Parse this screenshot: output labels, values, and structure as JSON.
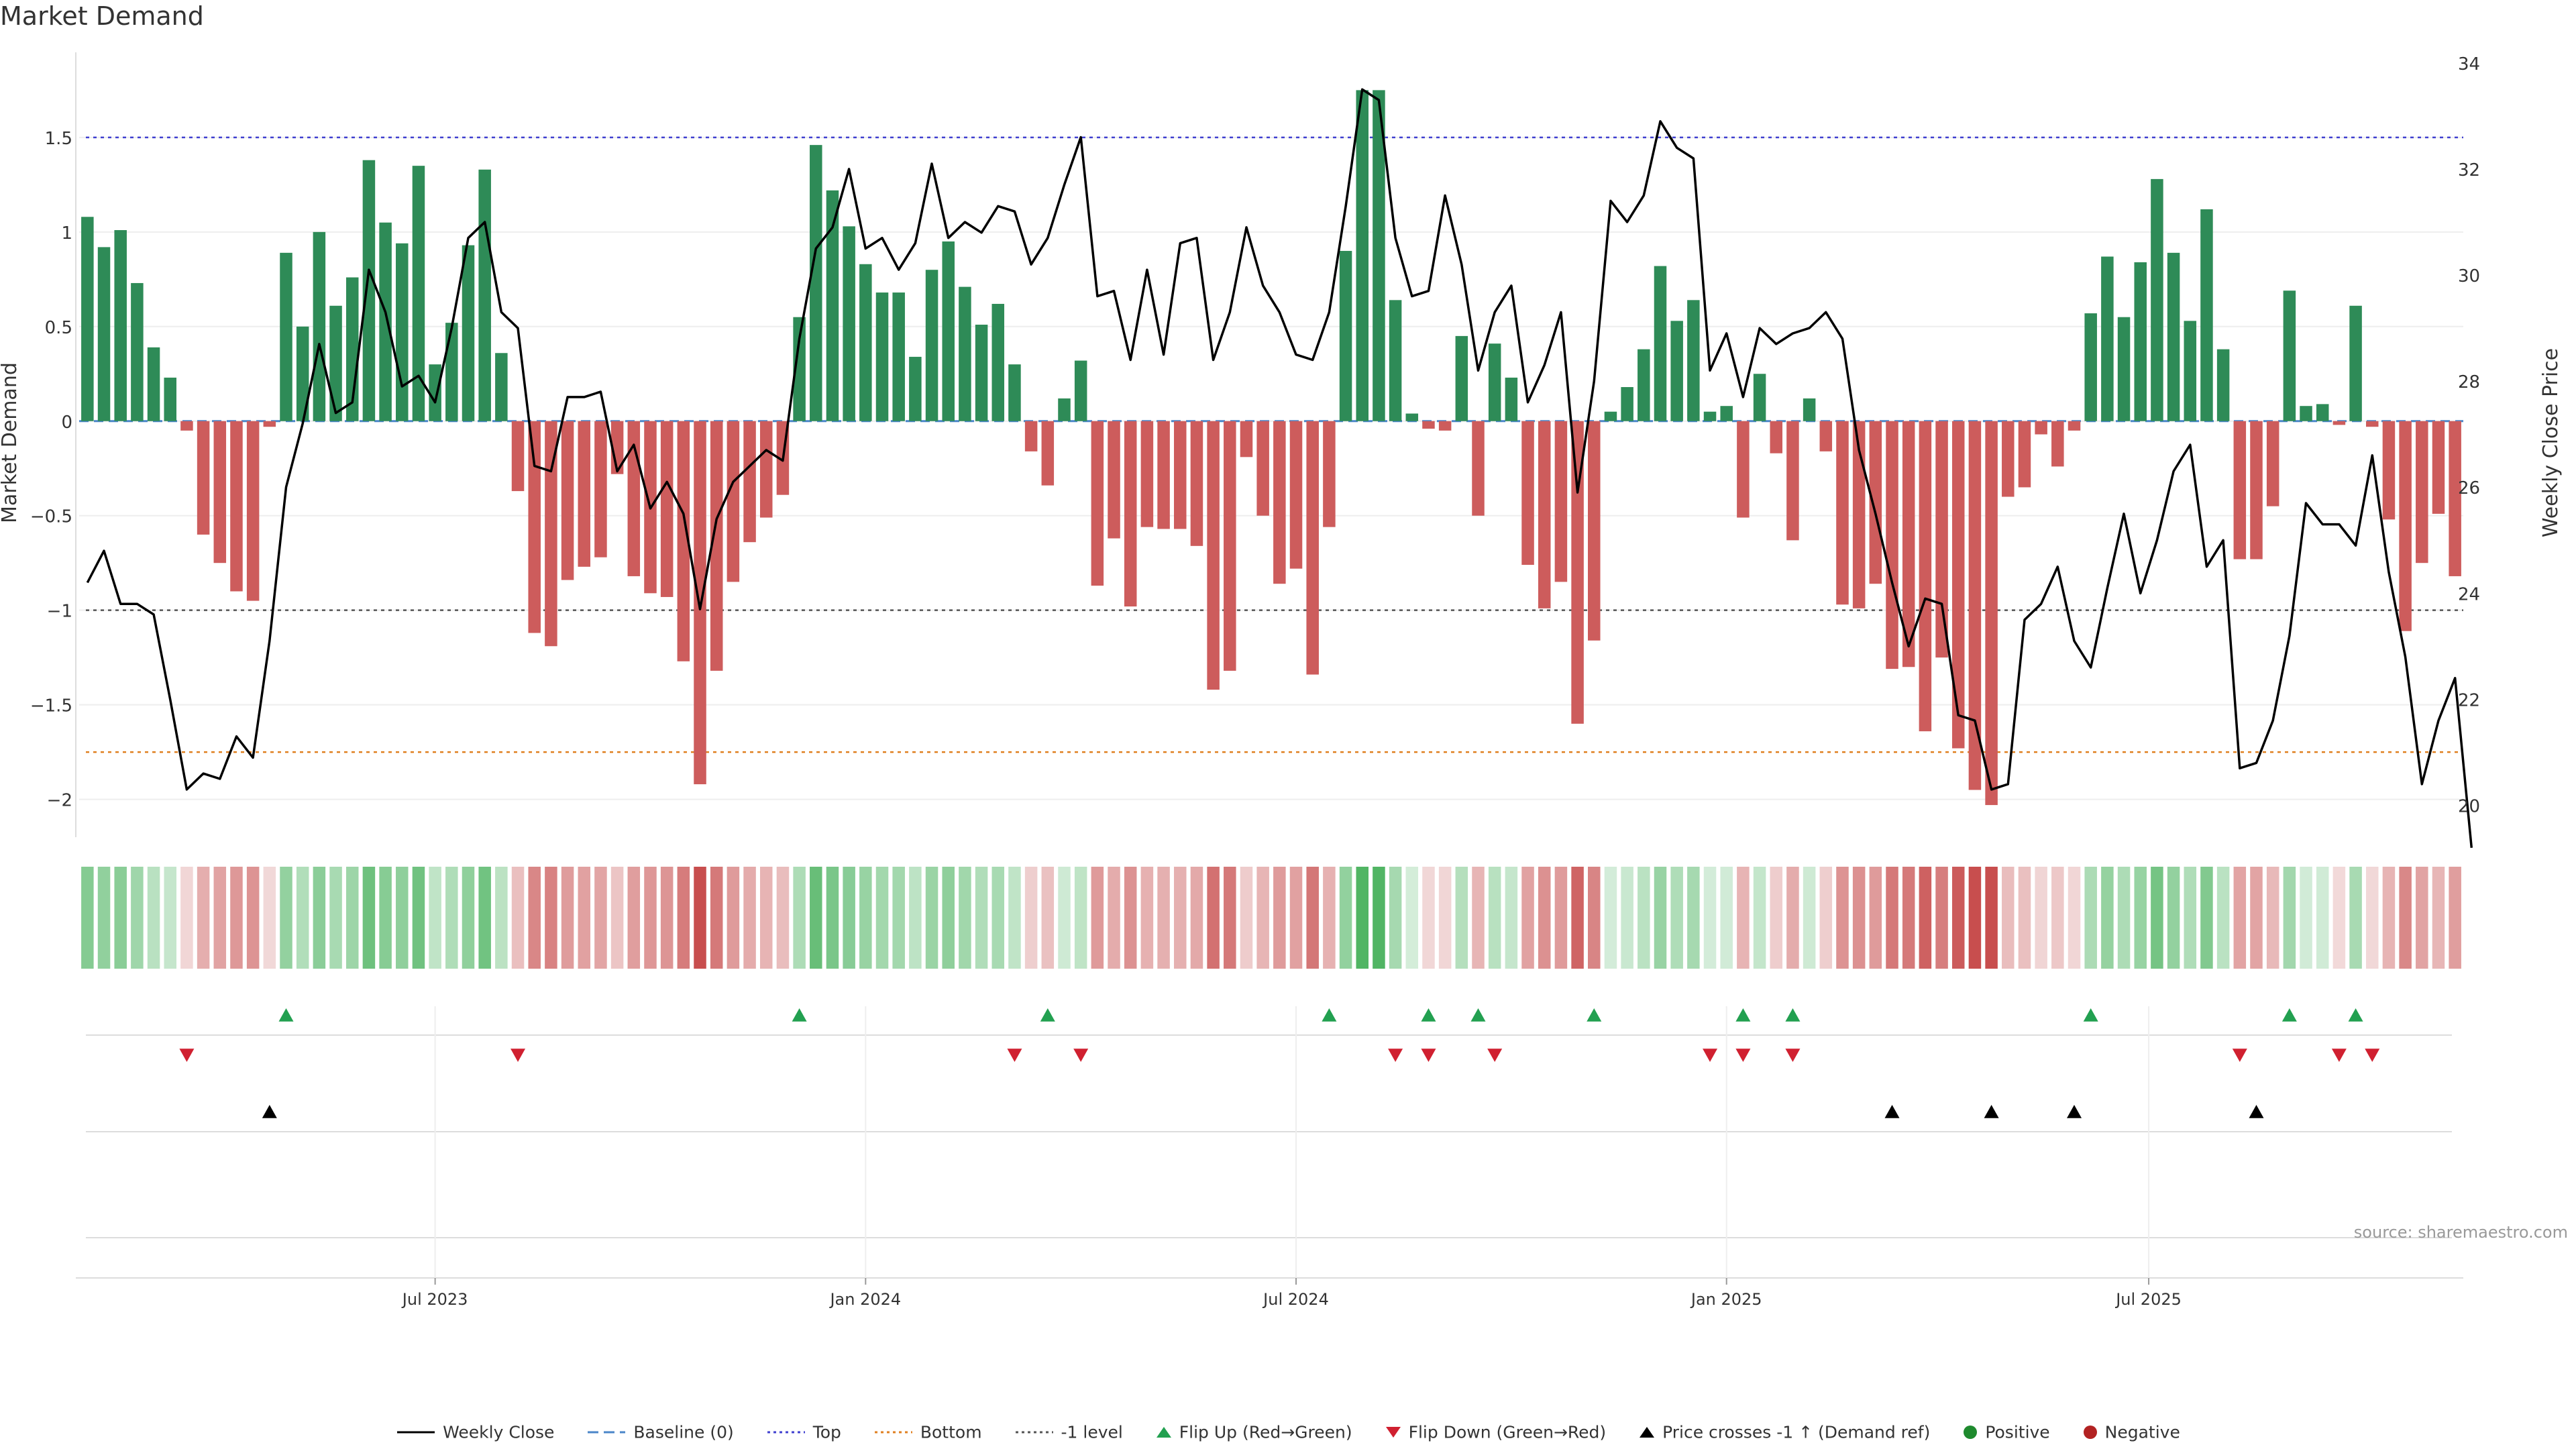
{
  "title": "Market Demand",
  "source": "source: sharemaestro.com",
  "chart_data": {
    "type": "bar",
    "title": "Market Demand",
    "ylabel_left": "Market Demand",
    "ylabel_right": "Weekly Close Price",
    "ylim_left": [
      -2.2,
      1.95
    ],
    "ylim_right": [
      19.4,
      34.2
    ],
    "yticks_left": [
      1.5,
      1,
      0.5,
      0,
      -0.5,
      -1,
      -1.5,
      -2
    ],
    "ytick_labels_left": [
      "1.5",
      "1",
      "0.5",
      "0",
      "−0.5",
      "−1",
      "−1.5",
      "−2"
    ],
    "yticks_right": [
      34,
      32,
      30,
      28,
      26,
      24,
      22,
      20
    ],
    "x_tick_labels": [
      "Jul 2023",
      "Jan 2024",
      "Jul 2024",
      "Jan 2025",
      "Jul 2025"
    ],
    "x_tick_index": [
      21.5,
      47.5,
      73.5,
      99.5,
      125
    ],
    "reference_lines": {
      "top": 1.5,
      "bottom": -1.75,
      "minus_one_level": -1,
      "baseline": 0
    },
    "demand": [
      1.08,
      0.92,
      1.01,
      0.73,
      0.39,
      0.23,
      -0.05,
      -0.6,
      -0.75,
      -0.9,
      -0.95,
      -0.03,
      0.89,
      0.5,
      1.0,
      0.61,
      0.76,
      1.38,
      1.05,
      0.94,
      1.35,
      0.3,
      0.52,
      0.93,
      1.33,
      0.36,
      -0.37,
      -1.12,
      -1.19,
      -0.84,
      -0.77,
      -0.72,
      -0.28,
      -0.82,
      -0.91,
      -0.93,
      -1.27,
      -1.92,
      -1.32,
      -0.85,
      -0.64,
      -0.51,
      -0.39,
      0.55,
      1.46,
      1.22,
      1.03,
      0.83,
      0.68,
      0.68,
      0.34,
      0.8,
      0.95,
      0.71,
      0.51,
      0.62,
      0.3,
      -0.16,
      -0.34,
      0.12,
      0.32,
      -0.87,
      -0.62,
      -0.98,
      -0.56,
      -0.57,
      -0.57,
      -0.66,
      -1.42,
      -1.32,
      -0.19,
      -0.5,
      -0.86,
      -0.78,
      -1.34,
      -0.56,
      0.9,
      1.75,
      1.75,
      0.64,
      0.04,
      -0.04,
      -0.05,
      0.45,
      -0.5,
      0.41,
      0.23,
      -0.76,
      -0.99,
      -0.85,
      -1.6,
      -1.16,
      0.05,
      0.18,
      0.38,
      0.82,
      0.53,
      0.64,
      0.05,
      0.08,
      -0.51,
      0.25,
      -0.17,
      -0.63,
      0.12,
      -0.16,
      -0.97,
      -0.99,
      -0.86,
      -1.31,
      -1.3,
      -1.64,
      -1.25,
      -1.73,
      -1.95,
      -2.03,
      -0.4,
      -0.35,
      -0.07,
      -0.24,
      -0.05,
      0.57,
      0.87,
      0.55,
      0.84,
      1.28,
      0.89,
      0.53,
      1.12,
      0.38,
      -0.73,
      -0.73,
      -0.45,
      0.69,
      0.08,
      0.09,
      -0.02,
      0.61,
      -0.03,
      -0.52,
      -1.11,
      -0.75,
      -0.49,
      -0.82
    ],
    "close": [
      24.2,
      24.8,
      23.8,
      23.8,
      23.6,
      22.0,
      20.3,
      20.6,
      20.5,
      21.3,
      20.9,
      23.1,
      26.0,
      27.2,
      28.7,
      27.4,
      27.6,
      30.1,
      29.3,
      27.9,
      28.1,
      27.6,
      29.0,
      30.7,
      31.0,
      29.3,
      29.0,
      26.4,
      26.3,
      27.7,
      27.7,
      27.8,
      26.3,
      26.8,
      25.6,
      26.1,
      25.5,
      23.7,
      25.4,
      26.1,
      26.4,
      26.7,
      26.5,
      28.8,
      30.5,
      30.9,
      32.0,
      30.5,
      30.7,
      30.1,
      30.6,
      32.1,
      30.7,
      31.0,
      30.8,
      31.3,
      31.2,
      30.2,
      30.7,
      31.7,
      32.6,
      29.6,
      29.7,
      28.4,
      30.1,
      28.5,
      30.6,
      30.7,
      28.4,
      29.3,
      30.9,
      29.8,
      29.3,
      28.5,
      28.4,
      29.3,
      31.3,
      33.5,
      33.3,
      30.7,
      29.6,
      29.7,
      31.5,
      30.2,
      28.2,
      29.3,
      29.8,
      27.6,
      28.3,
      29.3,
      25.9,
      28.0,
      31.4,
      31.0,
      31.5,
      32.9,
      32.4,
      32.2,
      28.2,
      28.9,
      27.7,
      29.0,
      28.7,
      28.9,
      29.0,
      29.3,
      28.8,
      26.7,
      25.5,
      24.2,
      23.0,
      23.9,
      23.8,
      21.7,
      21.6,
      20.3,
      20.4,
      23.5,
      23.8,
      24.5,
      23.1,
      22.6,
      24.1,
      25.5,
      24.0,
      25.0,
      26.3,
      26.8,
      24.5,
      25.0,
      20.7,
      20.8,
      21.6,
      23.2,
      25.7,
      25.3,
      25.3,
      24.9,
      26.6,
      24.4,
      22.8,
      20.4,
      21.6,
      22.4,
      19.2
    ],
    "flip_up_index": [
      12,
      43,
      58,
      75,
      81,
      84,
      91,
      100,
      103,
      121,
      133,
      137
    ],
    "flip_down_index": [
      6,
      26,
      56,
      60,
      79,
      81,
      85,
      98,
      100,
      103,
      130,
      136,
      138
    ],
    "price_cross_index": [
      11,
      109,
      115,
      120,
      131
    ],
    "series": [
      {
        "name": "Weekly Close",
        "values_key": "close"
      },
      {
        "name": "Market Demand",
        "values_key": "demand"
      }
    ],
    "legend": [
      "Weekly Close",
      "Baseline (0)",
      "Top",
      "Bottom",
      "-1 level",
      "Flip Up (Red→Green)",
      "Flip Down (Green→Red)",
      "Price crosses -1 ↑ (Demand ref)",
      "Positive",
      "Negative"
    ],
    "colors": {
      "positive": "#2e8b57",
      "negative": "#cd5c5c",
      "close_line": "#000000",
      "top": "#4040d0",
      "bottom": "#e08020",
      "minus_one": "#555555",
      "baseline": "#4a86c8",
      "flip_up": "#22a050",
      "flip_down": "#d02030",
      "cross": "#000000",
      "positive_dot": "#1e8a2e",
      "negative_dot": "#b22222"
    }
  }
}
